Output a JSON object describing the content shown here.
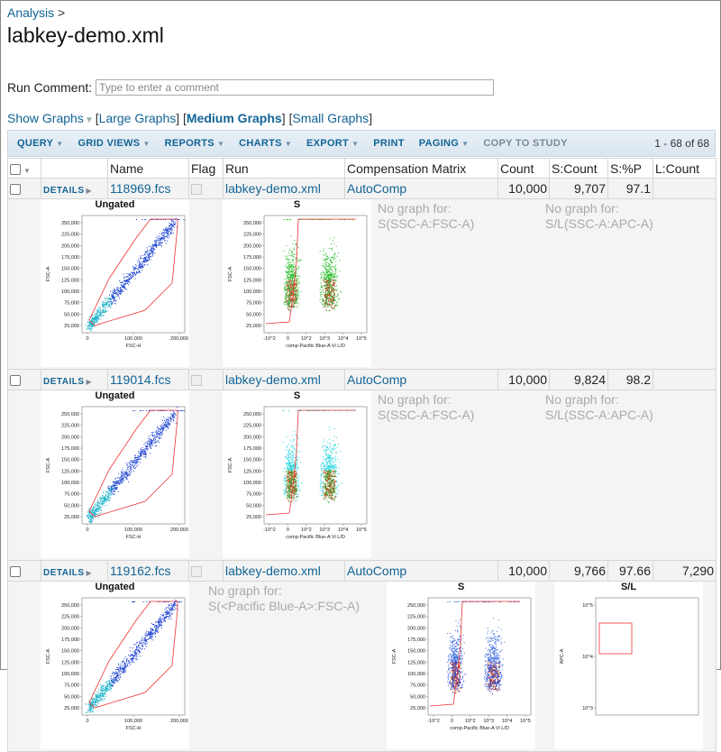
{
  "breadcrumb": {
    "link": "Analysis",
    "sep": ">"
  },
  "page_title": "labkey-demo.xml",
  "run_comment": {
    "label": "Run Comment:",
    "placeholder": "Type to enter a comment"
  },
  "graph_options": {
    "show": "Show Graphs",
    "large": "Large Graphs",
    "medium": "Medium Graphs",
    "small": "Small Graphs",
    "bracket_open": "[",
    "bracket_close": "]"
  },
  "toolbar": {
    "query": "QUERY",
    "grid_views": "GRID VIEWS",
    "reports": "REPORTS",
    "charts": "CHARTS",
    "export": "EXPORT",
    "print": "PRINT",
    "paging": "PAGING",
    "copy_to_study": "COPY TO STUDY",
    "count": "1 - 68 of 68"
  },
  "columns": [
    "Name",
    "Flag",
    "Run",
    "Compensation Matrix",
    "Count",
    "S:Count",
    "S:%P",
    "L:Count"
  ],
  "details_label": "DETAILS",
  "rows": [
    {
      "name": "118969.fcs",
      "run": "labkey-demo.xml",
      "comp": "AutoComp",
      "count": "10,000",
      "s_count": "9,707",
      "s_pct": "97.1",
      "l_count": ""
    },
    {
      "name": "119014.fcs",
      "run": "labkey-demo.xml",
      "comp": "AutoComp",
      "count": "10,000",
      "s_count": "9,824",
      "s_pct": "98.2",
      "l_count": ""
    },
    {
      "name": "119162.fcs",
      "run": "labkey-demo.xml",
      "comp": "AutoComp",
      "count": "10,000",
      "s_count": "9,766",
      "s_pct": "97.66",
      "l_count": "7,290"
    }
  ],
  "graphs": {
    "ungated_title": "Ungated",
    "s_title": "S",
    "sl_title": "S/L",
    "no_graph_prefix": "No graph for:",
    "ng_ssc": "S(SSC-A:FSC-A)",
    "ng_apc": "S/L(SSC-A:APC-A)",
    "ng_pacific": "S(<Pacific Blue-A>:FSC-A)",
    "y_ticks": [
      "250,000",
      "225,000",
      "200,000",
      "175,000",
      "150,000",
      "125,000",
      "100,000",
      "75,000",
      "50,000",
      "25,000"
    ],
    "x_ticks_fsc": [
      "0",
      "100,000",
      "200,000"
    ],
    "x_ticks_log": [
      "-10^2",
      "0",
      "10^2",
      "10^3",
      "10^4",
      "10^5"
    ],
    "sl_y_ticks": [
      "10^5",
      "10^4",
      "10^3"
    ],
    "fsc_a": "FSC-A",
    "fsc_h": "FSC-H",
    "apc_a": "APC-A",
    "comp_label": "comp-Pacific Blue-A Vi L/D"
  },
  "colors": {
    "link": "#126495",
    "blue_dots": "#1a3fd0",
    "green_dots": "#22bb22",
    "cyan_dots": "#22d4e0",
    "gate": "#e33"
  }
}
